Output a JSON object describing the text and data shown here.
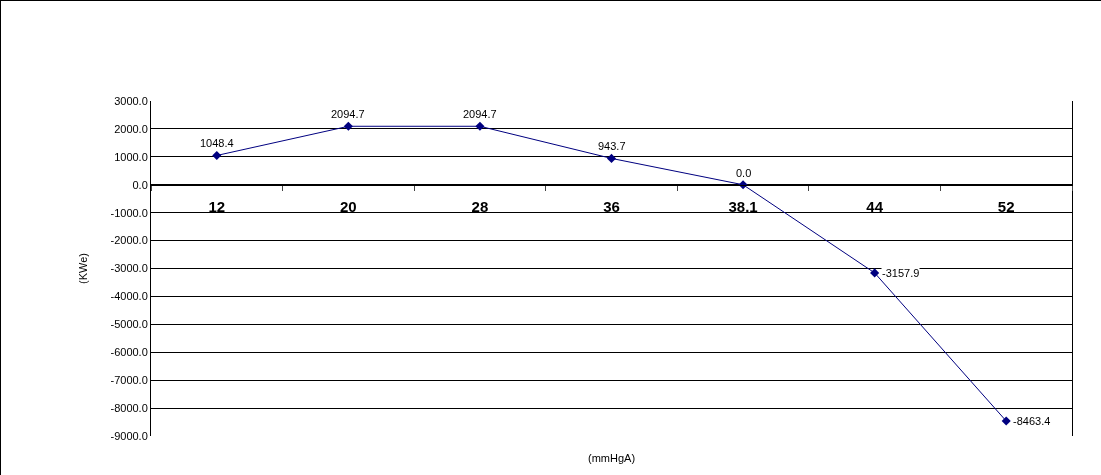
{
  "chart_data": {
    "type": "line",
    "xlabel": "(mmHgA)",
    "ylabel": "(KWe)",
    "categories": [
      "12",
      "20",
      "28",
      "36",
      "38.1",
      "44",
      "52"
    ],
    "series": [
      {
        "color": "#000080",
        "values": [
          1048.4,
          2094.7,
          2094.7,
          943.7,
          0.0,
          -3157.9,
          -8463.4
        ],
        "value_labels": [
          "1048.4",
          "2094.7",
          "2094.7",
          "943.7",
          "0.0",
          "-3157.9",
          "-8463.4"
        ]
      }
    ],
    "ylim": [
      -9000,
      3000
    ],
    "yticks": [
      {
        "value": -9000,
        "label": "-9000.0"
      },
      {
        "value": -8000,
        "label": "-8000.0"
      },
      {
        "value": -7000,
        "label": "-7000.0"
      },
      {
        "value": -6000,
        "label": "-6000.0"
      },
      {
        "value": -5000,
        "label": "-5000.0"
      },
      {
        "value": -4000,
        "label": "-4000.0"
      },
      {
        "value": -3000,
        "label": "-3000.0"
      },
      {
        "value": -2000,
        "label": "-2000.0"
      },
      {
        "value": -1000,
        "label": "-1000.0"
      },
      {
        "value": 0,
        "label": "0.0"
      },
      {
        "value": 1000,
        "label": "1000.0"
      },
      {
        "value": 2000,
        "label": "2000.0"
      },
      {
        "value": 3000,
        "label": "3000.0"
      }
    ],
    "grid": "y",
    "marker": "diamond",
    "line_style": "solid"
  }
}
